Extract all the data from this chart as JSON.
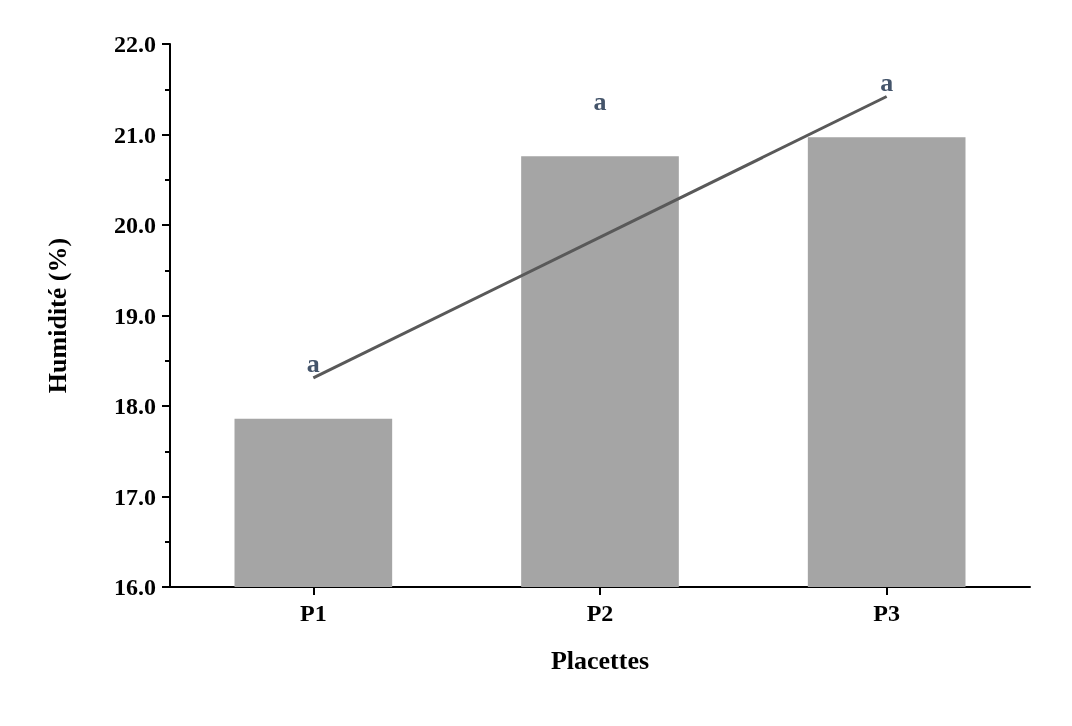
{
  "chart_data": {
    "type": "bar",
    "xlabel": "Placettes",
    "ylabel": "Humidité (%)",
    "categories": [
      "P1",
      "P2",
      "P3"
    ],
    "series": [
      {
        "color": "#a5a5a5",
        "values": [
          17.86,
          20.76,
          20.97
        ]
      },
      {
        "type": "line",
        "color": "#595959",
        "x": [
          "P1",
          "P3"
        ],
        "values": [
          18.31,
          21.42
        ],
        "marker": "none",
        "line_style": "solid"
      }
    ],
    "annotations": [
      "a",
      "a",
      "a"
    ],
    "ylim": [
      16,
      22
    ],
    "yticks": [
      {
        "value": 16,
        "label": "16.0"
      },
      {
        "value": 17,
        "label": "17.0"
      },
      {
        "value": 18,
        "label": "18.0"
      },
      {
        "value": 19,
        "label": "19.0"
      },
      {
        "value": 20,
        "label": "20.0"
      },
      {
        "value": 21,
        "label": "21.0"
      },
      {
        "value": 22,
        "label": "22.0"
      }
    ],
    "grid": false
  }
}
